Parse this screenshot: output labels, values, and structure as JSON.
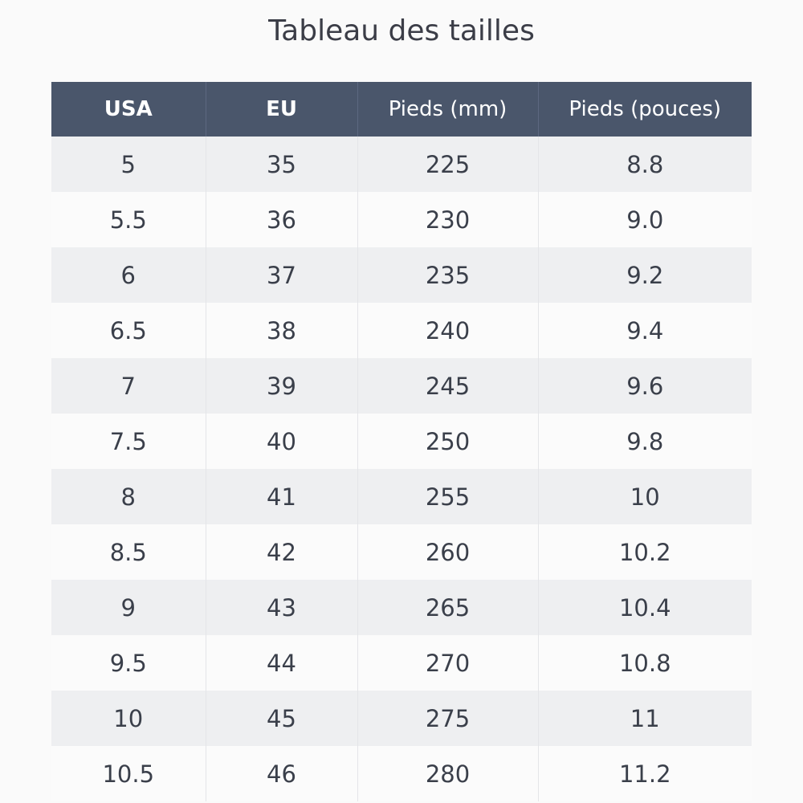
{
  "title": "Tableau des tailles",
  "table": {
    "header": [
      "USA",
      "EU",
      "Pieds (mm)",
      "Pieds (pouces)"
    ],
    "rows": [
      [
        "5",
        "35",
        "225",
        "8.8"
      ],
      [
        "5.5",
        "36",
        "230",
        "9.0"
      ],
      [
        "6",
        "37",
        "235",
        "9.2"
      ],
      [
        "6.5",
        "38",
        "240",
        "9.4"
      ],
      [
        "7",
        "39",
        "245",
        "9.6"
      ],
      [
        "7.5",
        "40",
        "250",
        "9.8"
      ],
      [
        "8",
        "41",
        "255",
        "10"
      ],
      [
        "8.5",
        "42",
        "260",
        "10.2"
      ],
      [
        "9",
        "43",
        "265",
        "10.4"
      ],
      [
        "9.5",
        "44",
        "270",
        "10.8"
      ],
      [
        "10",
        "45",
        "275",
        "11"
      ],
      [
        "10.5",
        "46",
        "280",
        "11.2"
      ]
    ]
  }
}
